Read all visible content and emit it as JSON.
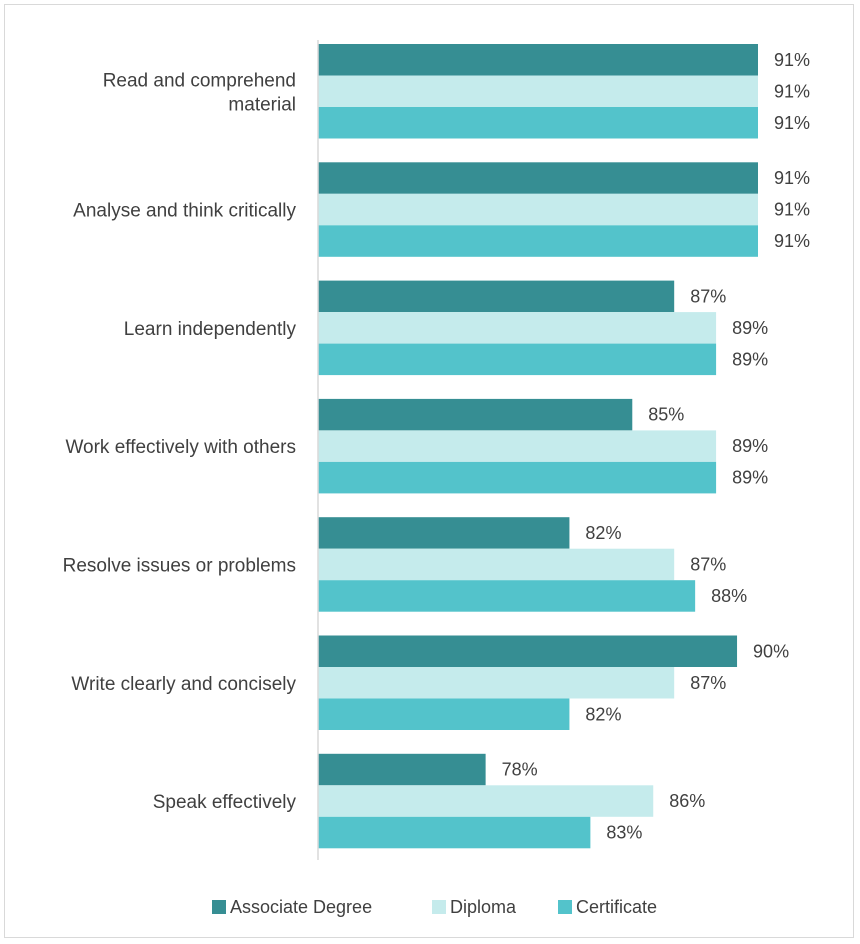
{
  "chart_data": {
    "type": "bar",
    "orientation": "horizontal",
    "categories": [
      [
        "Read and comprehend",
        "material"
      ],
      [
        "Analyse and think critically"
      ],
      [
        "Learn independently"
      ],
      [
        "Work effectively with others"
      ],
      [
        "Resolve issues or problems"
      ],
      [
        "Write clearly and concisely"
      ],
      [
        "Speak effectively"
      ]
    ],
    "series": [
      {
        "name": "Associate Degree",
        "color": "#368E93",
        "values": [
          91,
          91,
          87,
          85,
          82,
          90,
          78
        ]
      },
      {
        "name": "Diploma",
        "color": "#C5EBEC",
        "values": [
          91,
          91,
          89,
          89,
          87,
          87,
          86
        ]
      },
      {
        "name": "Certificate",
        "color": "#53C3CB",
        "values": [
          91,
          91,
          89,
          89,
          88,
          82,
          83
        ]
      }
    ],
    "value_suffix": "%",
    "xlim": [
      70,
      91
    ],
    "axis_color": "#d9d9d9",
    "legend_position": "bottom",
    "gridlines": false
  }
}
